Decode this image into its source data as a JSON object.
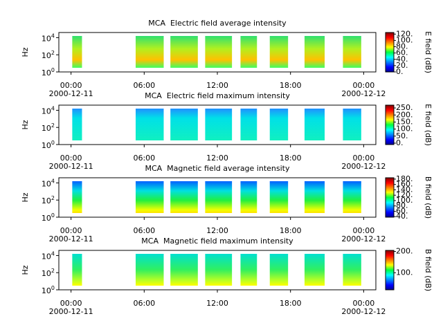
{
  "chart_data": [
    {
      "type": "spectrogram",
      "title": "MCA  Electric field average intensity",
      "ylabel": "Hz",
      "log_y": true,
      "xlim": [
        -1,
        25
      ],
      "xticks": [
        {
          "value": 0,
          "label": "00:00"
        },
        {
          "value": 6,
          "label": "06:00"
        },
        {
          "value": 12,
          "label": "12:00"
        },
        {
          "value": 18,
          "label": "18:00"
        },
        {
          "value": 24,
          "label": "00:00"
        }
      ],
      "date_labels": [
        {
          "value": 0,
          "label": "2000-12-11"
        },
        {
          "value": 24,
          "label": "2000-12-12"
        }
      ],
      "ylim": [
        1,
        40000
      ],
      "yticks": [
        {
          "value": 1,
          "label": "10^0"
        },
        {
          "value": 100,
          "label": "10^2"
        },
        {
          "value": 10000,
          "label": "10^4"
        }
      ],
      "intervals": [
        [
          0.1,
          0.9
        ],
        [
          5.3,
          7.6
        ],
        [
          8.15,
          10.4
        ],
        [
          11.0,
          13.2
        ],
        [
          13.9,
          15.25
        ],
        [
          16.3,
          17.8
        ],
        [
          19.15,
          20.8
        ],
        [
          22.3,
          23.8
        ]
      ],
      "colorbar": {
        "label": "E field (dB)",
        "lim": [
          0,
          125
        ],
        "ticks": [
          {
            "value": 0,
            "label": "0."
          },
          {
            "value": 20,
            "label": "20."
          },
          {
            "value": 40,
            "label": "40."
          },
          {
            "value": 60,
            "label": "60."
          },
          {
            "value": 80,
            "label": "80."
          },
          {
            "value": 100,
            "label": "100."
          },
          {
            "value": 120,
            "label": "120."
          }
        ]
      }
    },
    {
      "type": "spectrogram",
      "title": "MCA  Electric field maximum intensity",
      "ylabel": "Hz",
      "log_y": true,
      "xlim": [
        -1,
        25
      ],
      "xticks": [
        {
          "value": 0,
          "label": "00:00"
        },
        {
          "value": 6,
          "label": "06:00"
        },
        {
          "value": 12,
          "label": "12:00"
        },
        {
          "value": 18,
          "label": "18:00"
        },
        {
          "value": 24,
          "label": "00:00"
        }
      ],
      "date_labels": [
        {
          "value": 0,
          "label": "2000-12-11"
        },
        {
          "value": 24,
          "label": "2000-12-12"
        }
      ],
      "ylim": [
        1,
        40000
      ],
      "yticks": [
        {
          "value": 1,
          "label": "10^0"
        },
        {
          "value": 100,
          "label": "10^2"
        },
        {
          "value": 10000,
          "label": "10^4"
        }
      ],
      "intervals": [
        [
          0.1,
          0.9
        ],
        [
          5.3,
          7.6
        ],
        [
          8.15,
          10.4
        ],
        [
          11.0,
          13.2
        ],
        [
          13.9,
          15.25
        ],
        [
          16.3,
          17.8
        ],
        [
          19.15,
          20.8
        ],
        [
          22.3,
          23.8
        ]
      ],
      "colorbar": {
        "label": "E field (dB)",
        "lim": [
          -10,
          270
        ],
        "ticks": [
          {
            "value": 0,
            "label": "0."
          },
          {
            "value": 50,
            "label": "50."
          },
          {
            "value": 100,
            "label": "100."
          },
          {
            "value": 150,
            "label": "150."
          },
          {
            "value": 200,
            "label": "200."
          },
          {
            "value": 250,
            "label": "250."
          }
        ]
      }
    },
    {
      "type": "spectrogram",
      "title": "MCA  Magnetic field average intensity",
      "ylabel": "Hz",
      "log_y": true,
      "xlim": [
        -1,
        25
      ],
      "xticks": [
        {
          "value": 0,
          "label": "00:00"
        },
        {
          "value": 6,
          "label": "06:00"
        },
        {
          "value": 12,
          "label": "12:00"
        },
        {
          "value": 18,
          "label": "18:00"
        },
        {
          "value": 24,
          "label": "00:00"
        }
      ],
      "date_labels": [
        {
          "value": 0,
          "label": "2000-12-11"
        },
        {
          "value": 24,
          "label": "2000-12-12"
        }
      ],
      "ylim": [
        1,
        40000
      ],
      "yticks": [
        {
          "value": 1,
          "label": "10^0"
        },
        {
          "value": 100,
          "label": "10^2"
        },
        {
          "value": 10000,
          "label": "10^4"
        }
      ],
      "intervals": [
        [
          0.1,
          0.9
        ],
        [
          5.3,
          7.6
        ],
        [
          8.15,
          10.4
        ],
        [
          11.0,
          13.2
        ],
        [
          13.9,
          15.25
        ],
        [
          16.3,
          17.8
        ],
        [
          19.15,
          20.8
        ],
        [
          22.3,
          23.8
        ]
      ],
      "colorbar": {
        "label": "B field (dB)",
        "lim": [
          38,
          185
        ],
        "ticks": [
          {
            "value": 40,
            "label": "40."
          },
          {
            "value": 60,
            "label": "60."
          },
          {
            "value": 80,
            "label": "80."
          },
          {
            "value": 100,
            "label": "100."
          },
          {
            "value": 120,
            "label": "120."
          },
          {
            "value": 140,
            "label": "140."
          },
          {
            "value": 160,
            "label": "160."
          },
          {
            "value": 180,
            "label": "180."
          }
        ]
      }
    },
    {
      "type": "spectrogram",
      "title": "MCA  Magnetic field maximum intensity",
      "ylabel": "Hz",
      "log_y": true,
      "xlim": [
        -1,
        25
      ],
      "xticks": [
        {
          "value": 0,
          "label": "00:00"
        },
        {
          "value": 6,
          "label": "06:00"
        },
        {
          "value": 12,
          "label": "12:00"
        },
        {
          "value": 18,
          "label": "18:00"
        },
        {
          "value": 24,
          "label": "00:00"
        }
      ],
      "date_labels": [
        {
          "value": 0,
          "label": "2000-12-11"
        },
        {
          "value": 24,
          "label": "2000-12-12"
        }
      ],
      "ylim": [
        1,
        40000
      ],
      "yticks": [
        {
          "value": 1,
          "label": "10^0"
        },
        {
          "value": 100,
          "label": "10^2"
        },
        {
          "value": 10000,
          "label": "10^4"
        }
      ],
      "intervals": [
        [
          0.1,
          0.9
        ],
        [
          5.3,
          7.6
        ],
        [
          8.15,
          10.4
        ],
        [
          11.0,
          13.2
        ],
        [
          13.9,
          15.25
        ],
        [
          16.3,
          17.8
        ],
        [
          19.15,
          20.8
        ],
        [
          22.3,
          23.8
        ]
      ],
      "colorbar": {
        "label": "B field (dB)",
        "lim": [
          20,
          205
        ],
        "ticks": [
          {
            "value": 100,
            "label": "100."
          },
          {
            "value": 200,
            "label": "200."
          }
        ]
      }
    }
  ]
}
